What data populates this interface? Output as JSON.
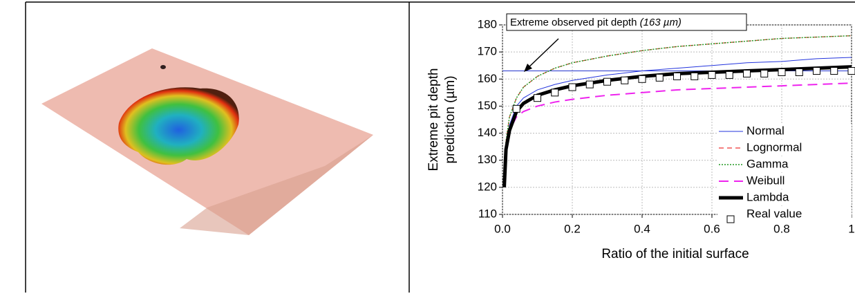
{
  "chart_data": {
    "type": "line",
    "annotation": "Extreme observed pit depth ",
    "annotation_value_text": "(163 µm)",
    "reference_line": 163,
    "reference_color": "#2233cc",
    "xlabel": "Ratio of the initial surface",
    "ylabel": [
      "Extreme pit depth",
      "prediction (µm)"
    ],
    "xlim": [
      0,
      1
    ],
    "ylim": [
      110,
      180
    ],
    "xticks": [
      {
        "value": 0,
        "label": "0.0"
      },
      0.2,
      0.4,
      0.6,
      0.8,
      1
    ],
    "yticks": [
      110,
      120,
      130,
      140,
      150,
      160,
      170,
      180
    ],
    "grid": true,
    "legend": "right",
    "x": [
      0.005,
      0.01,
      0.02,
      0.04,
      0.06,
      0.1,
      0.15,
      0.2,
      0.3,
      0.4,
      0.5,
      0.6,
      0.7,
      0.8,
      0.9,
      1
    ],
    "series": [
      {
        "name": "Normal",
        "color": "#2233dd",
        "style": "solid",
        "values": [
          121,
          135,
          143,
          150,
          153,
          156,
          158,
          159.5,
          161.5,
          163,
          164,
          165,
          166,
          166.5,
          167.5,
          168
        ]
      },
      {
        "name": "Lognormal",
        "color": "#ee3333",
        "style": "dashed",
        "values": [
          121,
          137,
          146,
          153,
          157,
          161,
          164,
          166,
          168.5,
          170.5,
          172,
          173,
          174,
          175,
          175.5,
          176
        ]
      },
      {
        "name": "Gamma",
        "color": "#229922",
        "style": "dotted",
        "values": [
          121,
          137,
          146,
          153,
          157,
          161,
          164,
          166,
          168.5,
          170.5,
          172,
          173,
          174,
          175,
          175.5,
          176
        ]
      },
      {
        "name": "Weibull",
        "color": "#ee22ee",
        "style": "longdash",
        "values": [
          121,
          134,
          141,
          146,
          148,
          150,
          151.5,
          152.5,
          154,
          155,
          156,
          156.5,
          157,
          157.5,
          158,
          158.5
        ]
      },
      {
        "name": "Lambda",
        "color": "#000000",
        "style": "thick",
        "values": [
          120,
          134,
          141,
          148,
          151,
          154,
          156,
          157.5,
          159.5,
          161,
          162,
          162.5,
          163,
          163.5,
          164,
          164.5
        ]
      },
      {
        "name": "Real value",
        "color": "#000000",
        "style": "marker",
        "x": [
          0.04,
          0.1,
          0.15,
          0.2,
          0.25,
          0.3,
          0.35,
          0.4,
          0.45,
          0.5,
          0.55,
          0.6,
          0.65,
          0.7,
          0.75,
          0.8,
          0.85,
          0.9,
          0.95,
          1
        ],
        "values": [
          149,
          153,
          155,
          157,
          158,
          159,
          159.5,
          160,
          160.5,
          161,
          161,
          161.5,
          161.5,
          162,
          162,
          162.5,
          162.5,
          163,
          163,
          163
        ]
      }
    ]
  }
}
